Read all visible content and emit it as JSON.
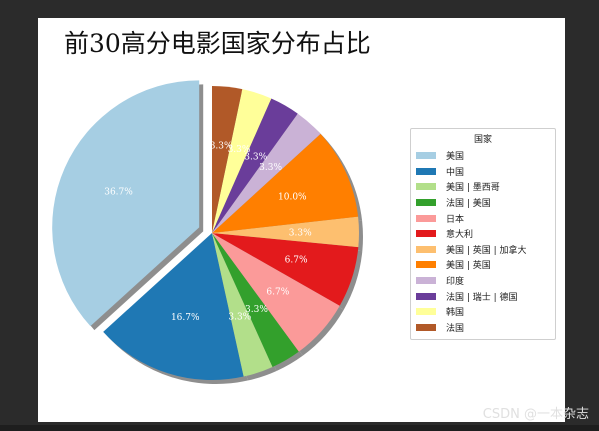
{
  "chart_data": {
    "type": "pie",
    "title": "前30高分电影国家分布占比",
    "legend_title": "国家",
    "legend_position": "right",
    "start_angle_deg": 90,
    "direction": "counterclockwise",
    "shadow": true,
    "autopct_format": "%.1f%%",
    "slices": [
      {
        "label": "美国",
        "value": 36.7,
        "pct_label": "36.7%",
        "color": "#a6cee3",
        "explode": true
      },
      {
        "label": "中国",
        "value": 16.7,
        "pct_label": "16.7%",
        "color": "#1f78b4",
        "explode": false
      },
      {
        "label": "美国 | 墨西哥",
        "value": 3.3,
        "pct_label": "3.3%",
        "color": "#b2df8a",
        "explode": false
      },
      {
        "label": "法国 | 美国",
        "value": 3.3,
        "pct_label": "3.3%",
        "color": "#33a02c",
        "explode": false
      },
      {
        "label": "日本",
        "value": 6.7,
        "pct_label": "6.7%",
        "color": "#fb9a99",
        "explode": false
      },
      {
        "label": "意大利",
        "value": 6.7,
        "pct_label": "6.7%",
        "color": "#e31a1c",
        "explode": false
      },
      {
        "label": "美国 | 英国 | 加拿大",
        "value": 3.3,
        "pct_label": "3.3%",
        "color": "#fdbf6f",
        "explode": false
      },
      {
        "label": "美国 | 英国",
        "value": 10.0,
        "pct_label": "10.0%",
        "color": "#ff7f00",
        "explode": false
      },
      {
        "label": "印度",
        "value": 3.3,
        "pct_label": "3.3%",
        "color": "#cab2d6",
        "explode": false
      },
      {
        "label": "法国 | 瑞士 | 德国",
        "value": 3.3,
        "pct_label": "3.3%",
        "color": "#6a3d9a",
        "explode": false
      },
      {
        "label": "韩国",
        "value": 3.3,
        "pct_label": "3.3%",
        "color": "#ffff99",
        "explode": false
      },
      {
        "label": "法国",
        "value": 3.3,
        "pct_label": "3.3%",
        "color": "#b15928",
        "explode": false
      }
    ]
  },
  "watermark": "CSDN @一本杂志"
}
